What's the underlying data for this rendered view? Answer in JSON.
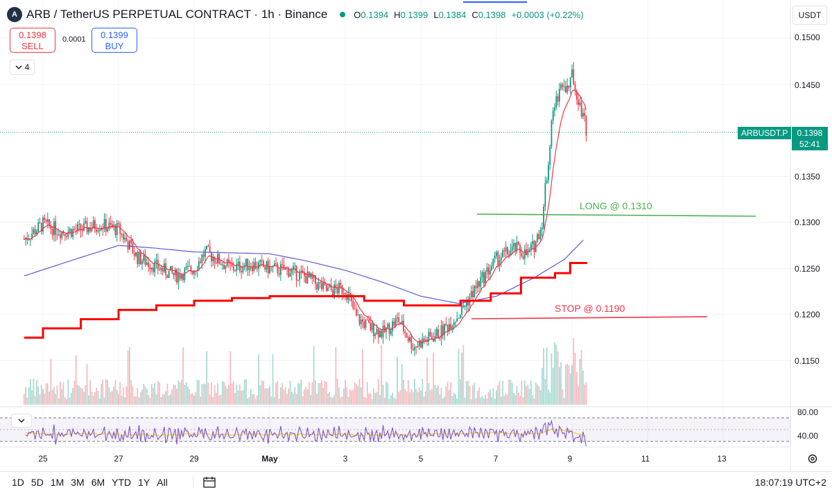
{
  "header": {
    "coin_symbol": "A",
    "title": "ARB / TetherUS PERPETUAL CONTRACT · 1h · Binance",
    "ohlc": {
      "o_label": "O",
      "o": "0.1394",
      "h_label": "H",
      "h": "0.1399",
      "l_label": "L",
      "l": "0.1384",
      "c_label": "C",
      "c": "0.1398",
      "change": "+0.0003 (+0.22%)"
    }
  },
  "trade": {
    "sell_price": "0.1398",
    "sell_label": "SELL",
    "spread": "0.0001",
    "buy_price": "0.1399",
    "buy_label": "BUY"
  },
  "indicators_toggle": {
    "count": "4",
    "icon": "chevron-down-icon"
  },
  "currency": "USDT",
  "price_axis": [
    "0.1500",
    "0.1450",
    "0.1400",
    "0.1350",
    "0.1300",
    "0.1250",
    "0.1200",
    "0.1150"
  ],
  "last_price": {
    "symbol": "ARBUSDT.P",
    "price": "0.1398",
    "countdown": "52:41"
  },
  "annotations": {
    "long": "LONG @ 0.1310",
    "stop": "STOP @ 0.1190"
  },
  "time_axis": [
    "25",
    "27",
    "29",
    "May",
    "3",
    "5",
    "7",
    "9",
    "11",
    "13"
  ],
  "rsi_axis": [
    "80.00",
    "40.00"
  ],
  "footer": {
    "ranges": [
      "1D",
      "5D",
      "1M",
      "3M",
      "6M",
      "YTD",
      "1Y",
      "All"
    ],
    "clock": "18:07:19 UTC+2"
  },
  "colors": {
    "up": "#089981",
    "down": "#f23645",
    "ema_fast": "#f23645",
    "ma_slow": "#5b5bd6",
    "supertrend": "#ff0000",
    "long_line": "#4caf50",
    "rsi": "#7e57c2",
    "rsi_signal": "#f5d33b",
    "accent": "#2962ff"
  },
  "chart_data": {
    "type": "candlestick",
    "title": "ARB / TetherUS PERPETUAL CONTRACT · 1h · Binance",
    "ylim": [
      0.1125,
      0.151
    ],
    "x_range_days": [
      24.5,
      38.5
    ],
    "anchors": [
      {
        "day": 24.5,
        "price": 0.1282
      },
      {
        "day": 25.0,
        "price": 0.1298
      },
      {
        "day": 25.5,
        "price": 0.129
      },
      {
        "day": 26.0,
        "price": 0.1292
      },
      {
        "day": 26.5,
        "price": 0.1298
      },
      {
        "day": 27.0,
        "price": 0.1292
      },
      {
        "day": 27.5,
        "price": 0.1262
      },
      {
        "day": 28.0,
        "price": 0.1252
      },
      {
        "day": 28.5,
        "price": 0.1242
      },
      {
        "day": 29.0,
        "price": 0.125
      },
      {
        "day": 29.3,
        "price": 0.1268
      },
      {
        "day": 29.6,
        "price": 0.126
      },
      {
        "day": 30.0,
        "price": 0.125
      },
      {
        "day": 30.5,
        "price": 0.1255
      },
      {
        "day": 31.0,
        "price": 0.125
      },
      {
        "day": 31.5,
        "price": 0.1248
      },
      {
        "day": 32.0,
        "price": 0.124
      },
      {
        "day": 32.5,
        "price": 0.1226
      },
      {
        "day": 33.0,
        "price": 0.1228
      },
      {
        "day": 33.3,
        "price": 0.1196
      },
      {
        "day": 33.7,
        "price": 0.1185
      },
      {
        "day": 34.0,
        "price": 0.118
      },
      {
        "day": 34.4,
        "price": 0.1195
      },
      {
        "day": 34.8,
        "price": 0.1165
      },
      {
        "day": 35.0,
        "price": 0.117
      },
      {
        "day": 35.5,
        "price": 0.118
      },
      {
        "day": 36.0,
        "price": 0.12
      },
      {
        "day": 36.5,
        "price": 0.1232
      },
      {
        "day": 37.0,
        "price": 0.126
      },
      {
        "day": 37.5,
        "price": 0.1272
      },
      {
        "day": 37.8,
        "price": 0.1265
      },
      {
        "day": 38.0,
        "price": 0.1275
      },
      {
        "day": 38.2,
        "price": 0.1298
      },
      {
        "day": 38.4,
        "price": 0.138
      },
      {
        "day": 38.5,
        "price": 0.142
      },
      {
        "day": 38.7,
        "price": 0.145
      },
      {
        "day": 38.9,
        "price": 0.1445
      },
      {
        "day": 39.0,
        "price": 0.146
      },
      {
        "day": 39.2,
        "price": 0.143
      },
      {
        "day": 39.4,
        "price": 0.1398
      }
    ],
    "supertrend_steps": [
      {
        "day": 24.5,
        "price": 0.1175
      },
      {
        "day": 25.0,
        "price": 0.1185
      },
      {
        "day": 26.0,
        "price": 0.1195
      },
      {
        "day": 27.0,
        "price": 0.1205
      },
      {
        "day": 28.0,
        "price": 0.121
      },
      {
        "day": 29.0,
        "price": 0.1215
      },
      {
        "day": 30.0,
        "price": 0.1218
      },
      {
        "day": 31.0,
        "price": 0.122
      },
      {
        "day": 33.5,
        "price": 0.1215
      },
      {
        "day": 34.5,
        "price": 0.121
      },
      {
        "day": 36.0,
        "price": 0.1215
      },
      {
        "day": 36.8,
        "price": 0.1223
      },
      {
        "day": 37.6,
        "price": 0.124
      },
      {
        "day": 38.5,
        "price": 0.1245
      },
      {
        "day": 38.9,
        "price": 0.1256
      },
      {
        "day": 39.4,
        "price": 0.1256
      }
    ],
    "ma_slow": [
      {
        "day": 24.5,
        "price": 0.1242
      },
      {
        "day": 26.0,
        "price": 0.1262
      },
      {
        "day": 27.0,
        "price": 0.1275
      },
      {
        "day": 28.0,
        "price": 0.1272
      },
      {
        "day": 29.0,
        "price": 0.1268
      },
      {
        "day": 31.0,
        "price": 0.1266
      },
      {
        "day": 32.0,
        "price": 0.1258
      },
      {
        "day": 33.0,
        "price": 0.1248
      },
      {
        "day": 34.0,
        "price": 0.1235
      },
      {
        "day": 35.0,
        "price": 0.122
      },
      {
        "day": 36.0,
        "price": 0.1212
      },
      {
        "day": 37.0,
        "price": 0.122
      },
      {
        "day": 38.0,
        "price": 0.124
      },
      {
        "day": 38.8,
        "price": 0.126
      },
      {
        "day": 39.4,
        "price": 0.1285
      }
    ],
    "long_level": 0.131,
    "stop_level": 0.119,
    "rsi_levels": [
      80,
      40
    ]
  }
}
